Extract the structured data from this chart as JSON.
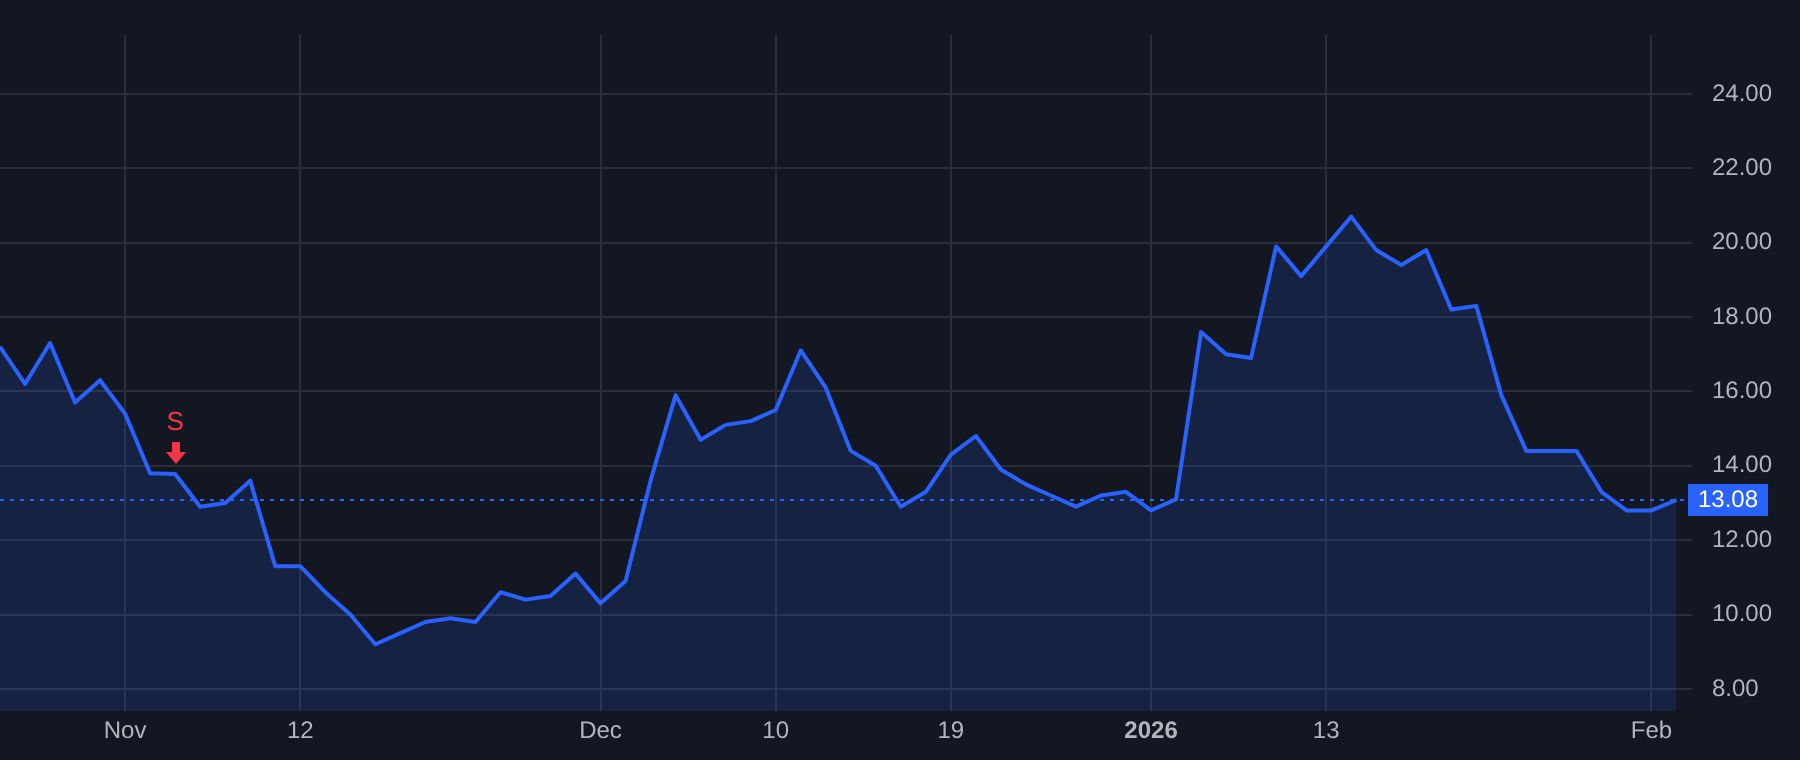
{
  "chart_data": {
    "type": "area",
    "categories": [
      null,
      null,
      null,
      null,
      null,
      "Nov",
      null,
      null,
      null,
      null,
      null,
      null,
      "12",
      null,
      null,
      null,
      null,
      null,
      null,
      null,
      null,
      null,
      null,
      null,
      "Dec",
      null,
      null,
      null,
      null,
      null,
      null,
      "10",
      null,
      null,
      null,
      null,
      null,
      null,
      "19",
      null,
      null,
      null,
      null,
      null,
      null,
      null,
      "2026",
      null,
      null,
      null,
      null,
      null,
      null,
      "13",
      null,
      null,
      null,
      null,
      null,
      null,
      null,
      null,
      null,
      null,
      null,
      null,
      "Feb",
      null
    ],
    "series": [
      {
        "color": "#2962ff",
        "values": [
          17.2,
          16.2,
          17.3,
          15.7,
          16.3,
          15.4,
          13.8,
          13.78,
          12.9,
          13.0,
          13.6,
          11.3,
          11.3,
          10.6,
          10.0,
          9.2,
          9.5,
          9.8,
          9.9,
          9.8,
          10.6,
          10.4,
          10.5,
          11.1,
          10.3,
          10.9,
          13.6,
          15.9,
          14.7,
          15.1,
          15.2,
          15.5,
          17.1,
          16.1,
          14.4,
          14.0,
          12.9,
          13.3,
          14.3,
          14.8,
          13.9,
          13.5,
          13.2,
          12.9,
          13.2,
          13.3,
          12.8,
          13.1,
          17.6,
          17.0,
          16.9,
          19.9,
          19.1,
          19.9,
          20.7,
          19.8,
          19.4,
          19.8,
          18.2,
          18.3,
          15.9,
          14.4,
          14.4,
          14.4,
          13.3,
          12.8,
          12.8,
          13.08
        ]
      }
    ],
    "ylim": [
      7.4,
      25.6
    ],
    "yticks": [
      {
        "value": 8,
        "label": "8.00"
      },
      {
        "value": 10,
        "label": "10.00"
      },
      {
        "value": 12,
        "label": "12.00"
      },
      {
        "value": 14,
        "label": "14.00"
      },
      {
        "value": 16,
        "label": "16.00"
      },
      {
        "value": 18,
        "label": "18.00"
      },
      {
        "value": 20,
        "label": "20.00"
      },
      {
        "value": 22,
        "label": "22.00"
      },
      {
        "value": 24,
        "label": "24.00"
      }
    ],
    "ref_lines": [
      {
        "axis": "y",
        "value": 13.08,
        "label": "13.08",
        "color": "#2962ff",
        "line_style": "dotted"
      }
    ],
    "annotations": [
      {
        "text": "S",
        "y": 13.78
      }
    ],
    "grid": true,
    "legend": false,
    "marker": "none",
    "line_style": "solid"
  }
}
